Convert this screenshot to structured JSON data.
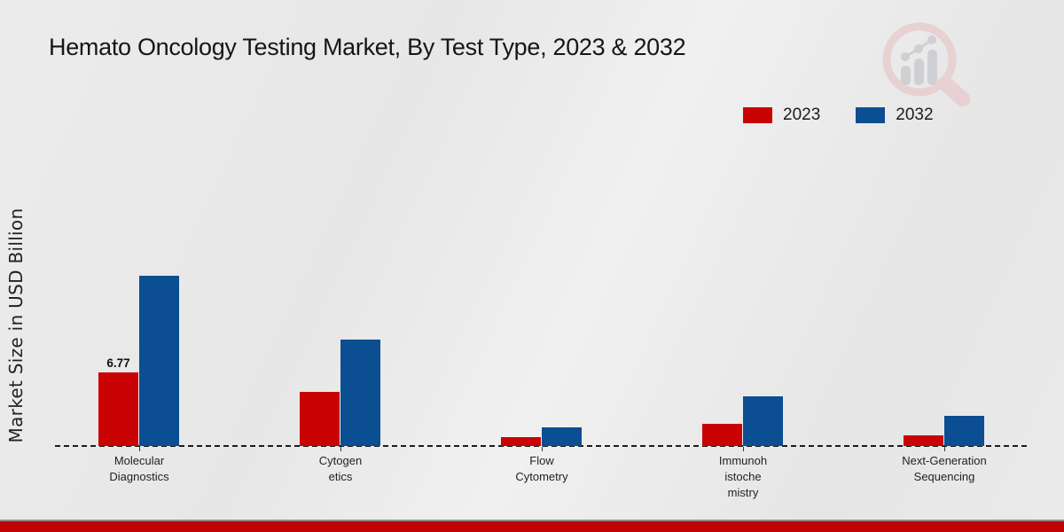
{
  "page": {
    "title": "Hemato Oncology Testing Market, By Test Type, 2023 & 2032",
    "y_axis_label": "Market Size in USD Billion"
  },
  "legend": {
    "items": [
      {
        "label": "2023",
        "color": "#c90303"
      },
      {
        "label": "2032",
        "color": "#0b4e92"
      }
    ]
  },
  "icons": {
    "logo": "bar-chart-magnifier-logo"
  },
  "colors": {
    "series_2023": "#c90303",
    "series_2032": "#0b4e92",
    "background": "#e9e9e9",
    "footer_strip": "#bf0202",
    "baseline": "#1c1c1c"
  },
  "footer": {
    "color": "#bf0202"
  },
  "chart_data": {
    "type": "bar",
    "title": "Hemato Oncology Testing Market, By Test Type, 2023 & 2032",
    "xlabel": "",
    "ylabel": "Market Size in USD Billion",
    "ylim": [
      0,
      17
    ],
    "grid": false,
    "legend_position": "top-right",
    "axis_style": "dashed-baseline-only",
    "categories": [
      "Molecular Diagnostics",
      "Cytogenetics",
      "Flow Cytometry",
      "Immunohistochemistry",
      "Next-Generation Sequencing"
    ],
    "categories_display": [
      [
        "Molecular",
        "Diagnostics"
      ],
      [
        "Cytogen",
        "etics"
      ],
      [
        "Flow",
        "Cytometry"
      ],
      [
        "Immunoh",
        "istoche",
        "mistry"
      ],
      [
        "Next-Generation",
        "Sequencing"
      ]
    ],
    "series": [
      {
        "name": "2023",
        "color": "#c90303",
        "values": [
          6.77,
          5.0,
          0.78,
          2.05,
          1.0
        ]
      },
      {
        "name": "2032",
        "color": "#0b4e92",
        "values": [
          15.75,
          9.8,
          1.7,
          4.55,
          2.8
        ]
      }
    ],
    "data_labels": [
      {
        "series": 0,
        "category": 0,
        "text": "6.77"
      }
    ]
  }
}
